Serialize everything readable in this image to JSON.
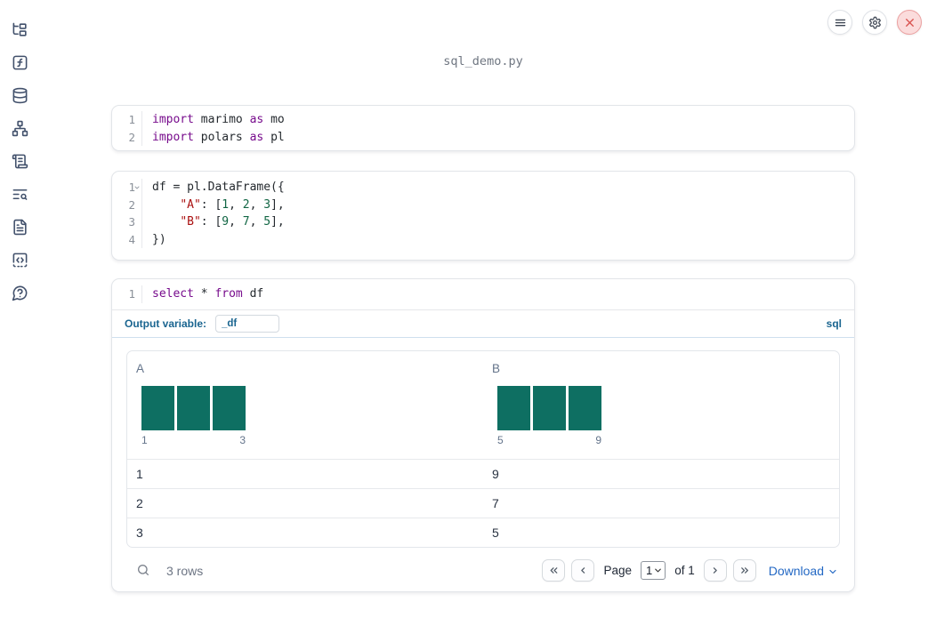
{
  "app": {
    "title": "sql_demo.py"
  },
  "colors": {
    "accent_blue": "#1a6590",
    "link_blue": "#2368c4",
    "histogram_teal": "#0e6f62",
    "keyword_purple": "#770b8c",
    "string_red": "#aa1111",
    "number_green": "#116644",
    "close_red": "#d9534f"
  },
  "sidebar": {
    "items": [
      {
        "icon": "file-tree-icon"
      },
      {
        "icon": "function-square-icon"
      },
      {
        "icon": "database-icon"
      },
      {
        "icon": "dependency-graph-icon"
      },
      {
        "icon": "logs-scroll-icon"
      },
      {
        "icon": "doc-search-icon"
      },
      {
        "icon": "snippets-file-icon"
      },
      {
        "icon": "scratchpad-code-icon"
      },
      {
        "icon": "help-question-icon"
      }
    ]
  },
  "topbar": {
    "buttons": [
      {
        "icon": "menu-icon"
      },
      {
        "icon": "settings-icon"
      },
      {
        "icon": "close-icon"
      }
    ]
  },
  "cells": {
    "imports": {
      "lines": [
        {
          "n": "1",
          "tokens": [
            {
              "t": "kw",
              "x": "import"
            },
            {
              "t": "plain",
              "x": " marimo "
            },
            {
              "t": "kw",
              "x": "as"
            },
            {
              "t": "plain",
              "x": " mo"
            }
          ]
        },
        {
          "n": "2",
          "tokens": [
            {
              "t": "kw",
              "x": "import"
            },
            {
              "t": "plain",
              "x": " polars "
            },
            {
              "t": "kw",
              "x": "as"
            },
            {
              "t": "plain",
              "x": " pl"
            }
          ]
        }
      ]
    },
    "dataframe": {
      "lines": [
        {
          "n": "1",
          "tokens": [
            {
              "t": "plain",
              "x": "df = pl.DataFrame({"
            }
          ]
        },
        {
          "n": "2",
          "tokens": [
            {
              "t": "plain",
              "x": "    "
            },
            {
              "t": "str",
              "x": "\"A\""
            },
            {
              "t": "plain",
              "x": ": ["
            },
            {
              "t": "num",
              "x": "1"
            },
            {
              "t": "plain",
              "x": ", "
            },
            {
              "t": "num",
              "x": "2"
            },
            {
              "t": "plain",
              "x": ", "
            },
            {
              "t": "num",
              "x": "3"
            },
            {
              "t": "plain",
              "x": "],"
            }
          ]
        },
        {
          "n": "3",
          "tokens": [
            {
              "t": "plain",
              "x": "    "
            },
            {
              "t": "str",
              "x": "\"B\""
            },
            {
              "t": "plain",
              "x": ": ["
            },
            {
              "t": "num",
              "x": "9"
            },
            {
              "t": "plain",
              "x": ", "
            },
            {
              "t": "num",
              "x": "7"
            },
            {
              "t": "plain",
              "x": ", "
            },
            {
              "t": "num",
              "x": "5"
            },
            {
              "t": "plain",
              "x": "],"
            }
          ]
        },
        {
          "n": "4",
          "tokens": [
            {
              "t": "plain",
              "x": "})"
            }
          ]
        }
      ]
    },
    "sql": {
      "lines": [
        {
          "n": "1",
          "tokens": [
            {
              "t": "kw",
              "x": "select"
            },
            {
              "t": "plain",
              "x": " * "
            },
            {
              "t": "kw",
              "x": "from"
            },
            {
              "t": "plain",
              "x": " df"
            }
          ]
        }
      ],
      "output_variable_label": "Output variable:",
      "output_variable_value": "_df",
      "language_badge": "sql"
    }
  },
  "table": {
    "columns": [
      {
        "name": "A",
        "hist": {
          "bars": [
            1,
            1,
            1
          ],
          "min_label": "1",
          "max_label": "3"
        }
      },
      {
        "name": "B",
        "hist": {
          "bars": [
            1,
            1,
            1
          ],
          "min_label": "5",
          "max_label": "9"
        }
      }
    ],
    "rows": [
      [
        "1",
        "9"
      ],
      [
        "2",
        "7"
      ],
      [
        "3",
        "5"
      ]
    ],
    "footer": {
      "row_count": "3 rows",
      "page_label": "Page",
      "page_value": "1",
      "of_label": "of 1",
      "download_label": "Download"
    }
  }
}
